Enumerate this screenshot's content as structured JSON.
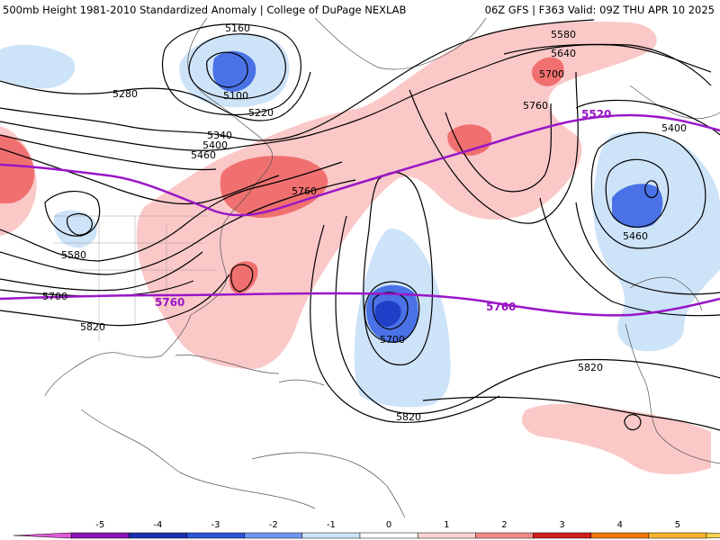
{
  "header": {
    "left_title": "500mb Height 1981-2010 Standardized Anomaly | College of DuPage NEXLAB",
    "right_title": "06Z GFS | F363 Valid: 09Z THU APR 10 2025"
  },
  "map": {
    "contour_labels": [
      {
        "text": "5160"
      },
      {
        "text": "5100"
      },
      {
        "text": "5280"
      },
      {
        "text": "5220"
      },
      {
        "text": "5340"
      },
      {
        "text": "5400"
      },
      {
        "text": "5460"
      },
      {
        "text": "5580"
      },
      {
        "text": "5640"
      },
      {
        "text": "5700"
      },
      {
        "text": "5760"
      },
      {
        "text": "5760"
      },
      {
        "text": "5580"
      },
      {
        "text": "5700"
      },
      {
        "text": "5820"
      },
      {
        "text": "5700"
      },
      {
        "text": "5820"
      },
      {
        "text": "5820"
      },
      {
        "text": "5460"
      },
      {
        "text": "5400"
      }
    ],
    "highlight_labels": [
      {
        "text": "5520"
      },
      {
        "text": "5760"
      },
      {
        "text": "5760"
      }
    ],
    "colors": {
      "highlight_contour": "#9a16c7",
      "positive_light": "#fbc8c8",
      "positive_medium": "#f07070",
      "negative_light": "#cde3f8",
      "negative_medium": "#4a72e6",
      "negative_strong": "#1f3fc8"
    }
  },
  "colorbar": {
    "ticks": [
      "-5",
      "-4",
      "-3",
      "-2",
      "-1",
      "0",
      "1",
      "2",
      "3",
      "4",
      "5"
    ],
    "colors": [
      "#8c14b4",
      "#1f2fb0",
      "#2e55d6",
      "#6f96ee",
      "#cfe3f8",
      "#ffffff",
      "#fbd3d3",
      "#f28a8a",
      "#d11e1e",
      "#f2790a",
      "#f6b42c"
    ]
  }
}
